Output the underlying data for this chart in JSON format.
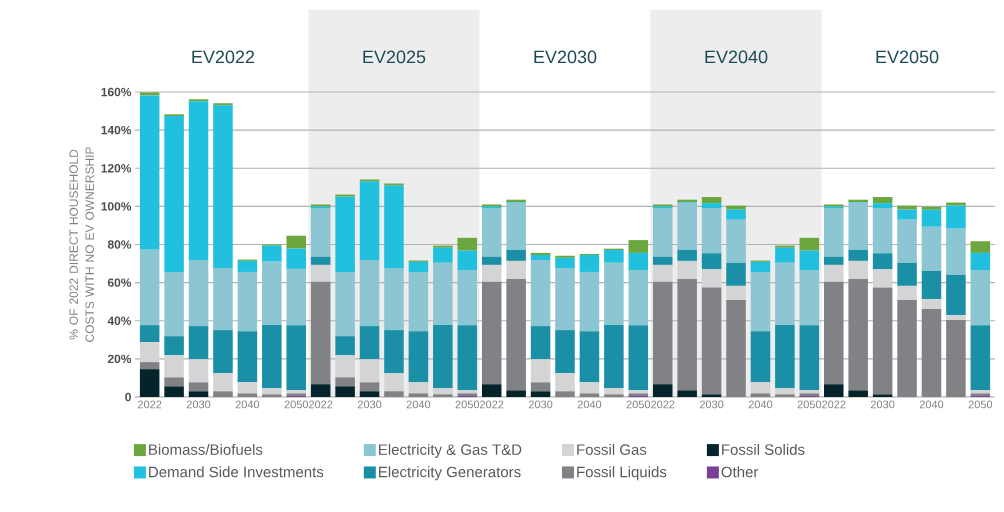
{
  "chart_data": {
    "type": "bar",
    "stacked": true,
    "ylabel": "% OF 2022 DIRECT HOUSEHOLD COSTS WITH NO EV OWNERSHIP",
    "categories": [
      "2022",
      null,
      "2030",
      null,
      "2040",
      null,
      "2050",
      "2022",
      null,
      "2030",
      null,
      "2040",
      null,
      "2050",
      "2022",
      null,
      "2030",
      null,
      "2040",
      null,
      "2050",
      "2022",
      null,
      "2030",
      null,
      "2040",
      null,
      "2050",
      "2022",
      null,
      "2030",
      null,
      "2040",
      null,
      "2050"
    ],
    "series": [
      {
        "name": "Other",
        "color": "#7b3f99",
        "values": [
          0,
          0,
          0,
          0,
          0,
          0,
          0.5,
          0,
          0,
          0,
          0,
          0,
          0,
          0.5,
          0,
          0,
          0,
          0,
          0,
          0,
          0.5,
          0,
          0,
          0,
          0,
          0,
          0,
          0.5,
          0,
          0,
          0,
          0,
          0,
          0,
          0.5
        ]
      },
      {
        "name": "Fossil Solids",
        "color": "#05232b",
        "values": [
          14.6,
          5.6,
          3,
          0,
          0,
          0,
          0,
          6.7,
          5.6,
          3,
          0,
          0,
          0,
          0,
          6.7,
          3.5,
          3,
          0,
          0,
          0,
          0,
          6.7,
          3.5,
          1.4,
          0,
          0,
          0,
          0,
          6.7,
          3.5,
          1.4,
          0,
          0,
          0,
          0
        ]
      },
      {
        "name": "Fossil Liquids",
        "color": "#808285",
        "values": [
          3.7,
          4.7,
          4.7,
          3,
          1.9,
          1.4,
          1.4,
          53.7,
          4.7,
          4.7,
          3,
          1.9,
          1.4,
          1.4,
          53.7,
          58.4,
          4.7,
          3,
          1.9,
          1.4,
          1.4,
          53.7,
          58.4,
          56.1,
          50.9,
          1.9,
          1.4,
          1.4,
          53.7,
          58.4,
          56.1,
          50.9,
          46.1,
          40.4,
          1.4
        ]
      },
      {
        "name": "Fossil Gas",
        "color": "#d3d4d6",
        "values": [
          10.5,
          11.6,
          12.1,
          9.5,
          5.8,
          3.2,
          1.6,
          8.9,
          11.6,
          12.1,
          9.5,
          5.8,
          3.2,
          1.6,
          8.9,
          9.5,
          12.1,
          9.5,
          5.8,
          3.2,
          1.6,
          8.9,
          9.5,
          9.5,
          7.4,
          5.8,
          3.2,
          1.6,
          8.9,
          9.5,
          9.5,
          7.4,
          5.3,
          2.6,
          1.6
        ]
      },
      {
        "name": "Electricity Generators",
        "color": "#1a8fa6",
        "values": [
          8.9,
          10,
          17.4,
          22.6,
          26.8,
          33.2,
          34.2,
          4.2,
          10,
          17.4,
          22.6,
          26.8,
          33.2,
          34.2,
          4.2,
          5.8,
          17.4,
          22.6,
          26.8,
          33.2,
          34.2,
          4.2,
          5.8,
          8.4,
          12.1,
          26.8,
          33.2,
          34.2,
          4.2,
          5.8,
          8.4,
          12.1,
          14.7,
          21.1,
          34.2
        ]
      },
      {
        "name": "Electricity & Gas T&D",
        "color": "#8cc6d2",
        "values": [
          39.5,
          33.7,
          34.7,
          32.6,
          31.1,
          33.2,
          29.5,
          25.3,
          33.7,
          34.7,
          32.6,
          31.1,
          32.6,
          28.9,
          25.3,
          24.7,
          34.7,
          32.6,
          31.1,
          32.6,
          28.9,
          25.3,
          24.7,
          23.7,
          22.6,
          31.1,
          32.6,
          28.9,
          25.3,
          24.7,
          23.7,
          22.6,
          23.2,
          24.2,
          28.9
        ]
      },
      {
        "name": "Demand Side Investments",
        "color": "#20c0de",
        "values": [
          81,
          81.8,
          83.2,
          85.3,
          5.8,
          8.4,
          10.7,
          1.1,
          39.5,
          41.1,
          43.2,
          5.3,
          7.9,
          10.2,
          1.1,
          0.4,
          2.6,
          5.3,
          8.9,
          6.7,
          9,
          1.1,
          0.4,
          2.6,
          5.3,
          5.3,
          7.9,
          10.2,
          1.1,
          0.4,
          2.6,
          5.3,
          8.9,
          12.1,
          9
        ]
      },
      {
        "name": "Biomass/Biofuels",
        "color": "#6ca63f",
        "values": [
          1.6,
          0.9,
          1.1,
          1.1,
          0.7,
          0.7,
          6.7,
          1.1,
          1.1,
          1.1,
          1.1,
          0.7,
          1.1,
          6.7,
          1.1,
          1.2,
          1.1,
          1.1,
          0.5,
          0.7,
          6.7,
          1.1,
          1.2,
          3.2,
          2.1,
          0.7,
          1.1,
          6.7,
          1.1,
          1.2,
          3.2,
          2.1,
          1.6,
          1.6,
          6.1
        ]
      }
    ],
    "ylim": [
      0,
      160
    ],
    "yticks": [
      0,
      {
        "value": 20,
        "label": "20%"
      },
      {
        "value": 40,
        "label": "40%"
      },
      {
        "value": 60,
        "label": "60%"
      },
      {
        "value": 80,
        "label": "80%"
      },
      {
        "value": 100,
        "label": "100%"
      },
      {
        "value": 120,
        "label": "120%"
      },
      {
        "value": 140,
        "label": "140%"
      },
      {
        "value": 160,
        "label": "160%"
      }
    ],
    "grid": "y",
    "legend": "bottom",
    "annotations": [
      "EV2022",
      "EV2025",
      "EV2030",
      "EV2040",
      "EV2050"
    ]
  }
}
